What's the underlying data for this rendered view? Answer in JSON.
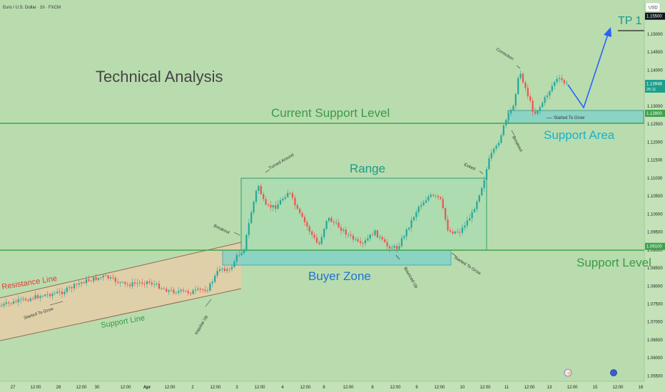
{
  "header": {
    "symbol_title": "Euro / U.S. Dollar · 1h · FXCM",
    "currency_button": "USD"
  },
  "chart_data": {
    "type": "candlestick",
    "title": "Technical Analysis",
    "y_ticks": [
      "1.15500",
      "1.15000",
      "1.14500",
      "1.14000",
      "1.13500",
      "1.13000",
      "1.12500",
      "1.12000",
      "1.11500",
      "1.11000",
      "1.10500",
      "1.10000",
      "1.09500",
      "1.09000",
      "1.08500",
      "1.08000",
      "1.07500",
      "1.07000",
      "1.06500",
      "1.06000",
      "1.05500"
    ],
    "x_ticks": [
      "27",
      "12:00",
      "28",
      "12:00",
      "30",
      "12:00",
      "Apr",
      "12:00",
      "2",
      "12:00",
      "3",
      "12:00",
      "4",
      "12:00",
      "6",
      "12:00",
      "8",
      "12:00",
      "9",
      "12:00",
      "10",
      "12:00",
      "11",
      "12:00",
      "13",
      "12:00",
      "15",
      "12:00",
      "16"
    ],
    "ylim": [
      1.0535,
      1.1595
    ],
    "current_price": {
      "value": "1.13948",
      "countdown": "26:11"
    },
    "price_badges": [
      {
        "value": "1.15500",
        "level": 1.155
      },
      {
        "value": "1.12800",
        "level": 1.128
      },
      {
        "value": "1.09100",
        "level": 1.091
      }
    ],
    "levels": [
      {
        "name": "Current Support Level",
        "value": 1.128
      },
      {
        "name": "Support Level",
        "value": 1.091
      },
      {
        "name": "TP 1",
        "value": 1.155
      }
    ],
    "zones": [
      {
        "name": "Range",
        "y_top": 1.112,
        "y_bottom": 1.091
      },
      {
        "name": "Buyer Zone",
        "y_top": 1.0912,
        "y_bottom": 1.0865
      },
      {
        "name": "Support Area",
        "y_top": 1.1315,
        "y_bottom": 1.1278
      }
    ],
    "channel": {
      "resistance_label": "Resistance Line",
      "support_label": "Support Line"
    },
    "labels": {
      "technical_analysis": "Technical Analysis",
      "current_support_level": "Current Support Level",
      "support_level": "Support Level",
      "range": "Range",
      "buyer_zone": "Buyer Zone",
      "support_area": "Support Area",
      "tp1": "TP 1",
      "resistance_line": "Resistance Line",
      "support_line": "Support Line"
    },
    "annotations": [
      "Started To Grow",
      "Impulse Up",
      "Breakout",
      "Turned Around",
      "Bounced Up",
      "Started To Grow",
      "Exited",
      "Breakout",
      "Correction",
      "Started To Grow"
    ],
    "colors": {
      "background": "#b9dcae",
      "up_candle": "#26a69a",
      "down_candle": "#ef5350",
      "level_line": "#3fa34d",
      "zone_fill": "#7cd0c9",
      "range_stroke": "#2f9e6e",
      "channel_fill": "#f3c9a6",
      "forecast": "#2962ff",
      "resistance_text": "#e53935",
      "title_text": "#444444",
      "tp_text": "#1c9a8c"
    }
  }
}
